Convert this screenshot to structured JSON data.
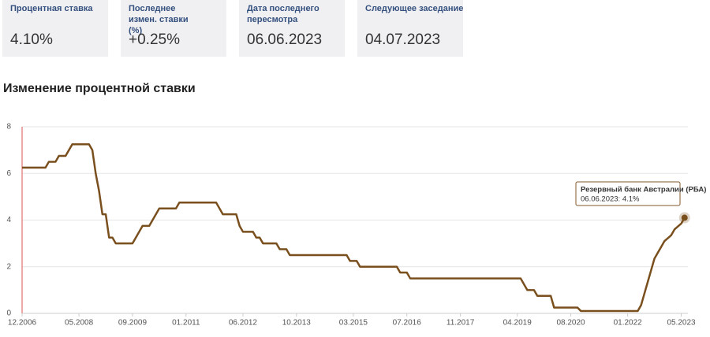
{
  "cards": [
    {
      "label": "Процентная ставка",
      "value": "4.10%"
    },
    {
      "label": "Последнее измен. ставки (%)",
      "value": "+0.25%"
    },
    {
      "label": "Дата последнего пересмотра",
      "value": "06.06.2023"
    },
    {
      "label": "Следующее заседание",
      "value": "04.07.2023"
    }
  ],
  "chart_data": {
    "type": "line",
    "title": "Изменение процентной ставки",
    "x": [
      "12.2006",
      "07.2007",
      "08.2007",
      "10.2007",
      "11.2007",
      "01.2008",
      "02.2008",
      "03.2008",
      "08.2008",
      "09.2008",
      "10.2008",
      "11.2008",
      "12.2008",
      "01.2009",
      "02.2009",
      "03.2009",
      "04.2009",
      "09.2009",
      "10.2009",
      "11.2009",
      "12.2009",
      "02.2010",
      "03.2010",
      "04.2010",
      "05.2010",
      "10.2010",
      "11.2010",
      "10.2011",
      "11.2011",
      "12.2011",
      "04.2012",
      "05.2012",
      "06.2012",
      "09.2012",
      "10.2012",
      "11.2012",
      "12.2012",
      "04.2013",
      "05.2013",
      "07.2013",
      "08.2013",
      "01.2015",
      "02.2015",
      "04.2015",
      "05.2015",
      "04.2016",
      "05.2016",
      "07.2016",
      "08.2016",
      "05.2019",
      "06.2019",
      "07.2019",
      "09.2019",
      "10.2019",
      "02.2020",
      "03.2020",
      "10.2020",
      "11.2020",
      "04.2022",
      "05.2022",
      "06.2022",
      "07.2022",
      "08.2022",
      "09.2022",
      "10.2022",
      "11.2022",
      "12.2022",
      "02.2023",
      "03.2023",
      "05.2023",
      "06.2023"
    ],
    "series": [
      {
        "name": "Резервный банк Австралии (РБА)",
        "color": "#7a4f1e",
        "values": [
          6.25,
          6.25,
          6.5,
          6.5,
          6.75,
          6.75,
          7.0,
          7.25,
          7.25,
          7.0,
          6.0,
          5.25,
          4.25,
          4.25,
          3.25,
          3.25,
          3.0,
          3.0,
          3.25,
          3.5,
          3.75,
          3.75,
          4.0,
          4.25,
          4.5,
          4.5,
          4.75,
          4.75,
          4.5,
          4.25,
          4.25,
          3.75,
          3.5,
          3.5,
          3.25,
          3.25,
          3.0,
          3.0,
          2.75,
          2.75,
          2.5,
          2.5,
          2.25,
          2.25,
          2.0,
          2.0,
          1.75,
          1.75,
          1.5,
          1.5,
          1.25,
          1.0,
          1.0,
          0.75,
          0.75,
          0.25,
          0.25,
          0.1,
          0.1,
          0.35,
          0.85,
          1.35,
          1.85,
          2.35,
          2.6,
          2.85,
          3.1,
          3.35,
          3.6,
          3.85,
          4.1
        ]
      }
    ],
    "xlim": [
      "12.2006",
      "07.2023"
    ],
    "xticks": [
      "12.2006",
      "05.2008",
      "09.2009",
      "01.2011",
      "06.2012",
      "10.2013",
      "03.2015",
      "07.2016",
      "11.2017",
      "04.2019",
      "08.2020",
      "01.2022",
      "05.2023"
    ],
    "ylim": [
      0,
      8
    ],
    "yticks": [
      0,
      2,
      4,
      6,
      8
    ],
    "grid": true,
    "tooltip_text": "06.06.2023: 4.1%"
  }
}
